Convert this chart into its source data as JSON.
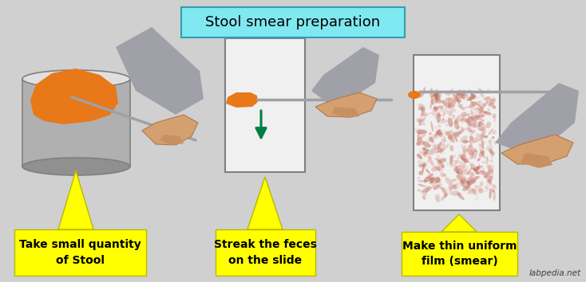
{
  "bg_color": "#d0d0d0",
  "title": "Stool smear preparation",
  "title_bg": "#80e8f0",
  "title_fontsize": 13,
  "label1": "Take small quantity\nof Stool",
  "label2": "Streak the feces\non the slide",
  "label3": "Make thin uniform\nfilm (smear)",
  "label_bg": "#ffff00",
  "label_fontsize": 10,
  "watermark": "labpedia.net",
  "orange": "#e87818",
  "hand_color": "#d4a070",
  "hand_shadow": "#a0a0a8",
  "slide_color": "#f0f0f0",
  "smear_color": "#d08878",
  "green_arrow": "#008040",
  "stick_color": "#a0a0a8",
  "cyl_body": "#b0b0b0",
  "cyl_top": "#d0d0d0",
  "cyl_bottom": "#909090"
}
